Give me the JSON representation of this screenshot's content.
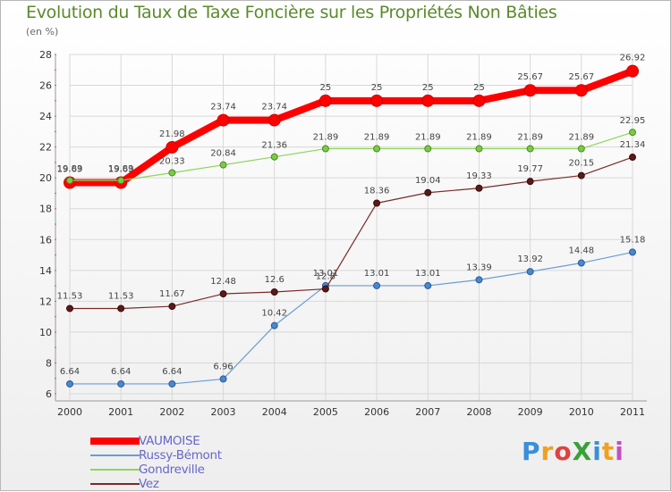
{
  "header": {
    "title": "Evolution du Taux de Taxe Foncière sur les Propriétés Non Bâties",
    "subtitle": "(en %)"
  },
  "logo": {
    "text": "ProXiti",
    "letters": [
      {
        "ch": "P",
        "color": "#3a8fd8"
      },
      {
        "ch": "r",
        "color": "#f0a020"
      },
      {
        "ch": "o",
        "color": "#e04040"
      },
      {
        "ch": "X",
        "color": "#3aa03a"
      },
      {
        "ch": "i",
        "color": "#3a8fd8"
      },
      {
        "ch": "t",
        "color": "#f0a020"
      },
      {
        "ch": "i",
        "color": "#c050c0"
      }
    ]
  },
  "chart_data": {
    "type": "line",
    "title": "Evolution du Taux de Taxe Foncière sur les Propriétés Non Bâties",
    "ylabel": "(en %)",
    "xlabel": "",
    "x": [
      "2000",
      "2001",
      "2002",
      "2003",
      "2004",
      "2005",
      "2006",
      "2007",
      "2008",
      "2009",
      "2010",
      "2011"
    ],
    "ylim": [
      6,
      28
    ],
    "yticks": [
      6,
      8,
      10,
      12,
      14,
      16,
      18,
      20,
      22,
      24,
      26,
      28
    ],
    "grid": true,
    "legend_position": "bottom-left",
    "series": [
      {
        "name": "VAUMOISE",
        "color": "#ff0000",
        "values": [
          19.69,
          19.69,
          21.98,
          23.74,
          23.74,
          25,
          25,
          25,
          25,
          25.67,
          25.67,
          26.92
        ],
        "labels": [
          "19.69",
          "19.69",
          "21.98",
          "23.74",
          "23.74",
          "25",
          "25",
          "25",
          "25",
          "25.67",
          "25.67",
          "26.92"
        ]
      },
      {
        "name": "Russy-Bémont",
        "color": "#6a9bd4",
        "values": [
          6.64,
          6.64,
          6.64,
          6.96,
          10.42,
          13.01,
          13.01,
          13.01,
          13.39,
          13.92,
          14.48,
          15.18
        ],
        "labels": [
          "6.64",
          "6.64",
          "6.64",
          "6.96",
          "10.42",
          "13.01",
          "13.01",
          "13.01",
          "13.39",
          "13.92",
          "14.48",
          "15.18"
        ]
      },
      {
        "name": "Gondreville",
        "color": "#8ed45a",
        "values": [
          19.83,
          19.83,
          20.33,
          20.84,
          21.36,
          21.89,
          21.89,
          21.89,
          21.89,
          21.89,
          21.89,
          22.95
        ],
        "labels": [
          "19.83",
          "19.83",
          "20.33",
          "20.84",
          "21.36",
          "21.89",
          "21.89",
          "21.89",
          "21.89",
          "21.89",
          "21.89",
          "22.95"
        ]
      },
      {
        "name": "Vez",
        "color": "#7a2a2a",
        "values": [
          11.53,
          11.53,
          11.67,
          12.48,
          12.6,
          12.8,
          18.36,
          19.04,
          19.33,
          19.77,
          20.15,
          21.34
        ],
        "labels": [
          "11.53",
          "11.53",
          "11.67",
          "12.48",
          "12.6",
          "12.8",
          "18.36",
          "19.04",
          "19.33",
          "19.77",
          "20.15",
          "21.34"
        ]
      }
    ]
  }
}
